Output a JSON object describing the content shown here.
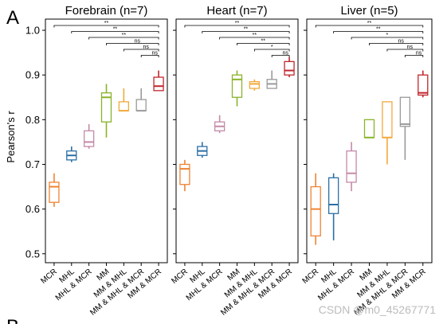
{
  "figure": {
    "panel_letter": "A",
    "next_panel_letter": "B",
    "ylabel": "Pearson's r",
    "watermark": "CSDN @m0_45267771"
  },
  "chart_data": {
    "type": "boxplot",
    "ylabel": "Pearson's r",
    "ylim": [
      0.48,
      1.025
    ],
    "yticks": [
      "0.5",
      "0.6",
      "0.7",
      "0.8",
      "0.9",
      "1.0"
    ],
    "categories": [
      "MCR",
      "MHL",
      "MHL & MCR",
      "MM",
      "MM & MHL",
      "MM & MHL & MCR",
      "MM & MCR"
    ],
    "colors": {
      "MCR": "#ee8434",
      "MHL": "#2b6fa6",
      "MHL & MCR": "#c48aa8",
      "MM": "#8ab32b",
      "MM & MHL": "#f2a93c",
      "MM & MHL & MCR": "#9a9a9a",
      "MM & MCR": "#c0272d"
    },
    "panels": [
      {
        "title": "Forebrain (n=7)",
        "boxes": [
          {
            "category": "MCR",
            "min": 0.605,
            "q1": 0.615,
            "median": 0.65,
            "q3": 0.66,
            "max": 0.68
          },
          {
            "category": "MHL",
            "min": 0.705,
            "q1": 0.71,
            "median": 0.72,
            "q3": 0.73,
            "max": 0.74
          },
          {
            "category": "MHL & MCR",
            "min": 0.735,
            "q1": 0.74,
            "median": 0.75,
            "q3": 0.775,
            "max": 0.79
          },
          {
            "category": "MM",
            "min": 0.76,
            "q1": 0.795,
            "median": 0.85,
            "q3": 0.86,
            "max": 0.88
          },
          {
            "category": "MM & MHL",
            "min": 0.82,
            "q1": 0.82,
            "median": 0.82,
            "q3": 0.84,
            "max": 0.87
          },
          {
            "category": "MM & MHL & MCR",
            "min": 0.82,
            "q1": 0.82,
            "median": 0.82,
            "q3": 0.845,
            "max": 0.87
          },
          {
            "category": "MM & MCR",
            "min": 0.865,
            "q1": 0.865,
            "median": 0.875,
            "q3": 0.895,
            "max": 0.91
          }
        ],
        "significance": [
          "**",
          "**",
          "**",
          "ns",
          "ns",
          "ns"
        ]
      },
      {
        "title": "Heart (n=7)",
        "boxes": [
          {
            "category": "MCR",
            "min": 0.64,
            "q1": 0.655,
            "median": 0.69,
            "q3": 0.7,
            "max": 0.71
          },
          {
            "category": "MHL",
            "min": 0.715,
            "q1": 0.72,
            "median": 0.73,
            "q3": 0.74,
            "max": 0.75
          },
          {
            "category": "MHL & MCR",
            "min": 0.77,
            "q1": 0.775,
            "median": 0.785,
            "q3": 0.795,
            "max": 0.81
          },
          {
            "category": "MM",
            "min": 0.83,
            "q1": 0.85,
            "median": 0.89,
            "q3": 0.9,
            "max": 0.91
          },
          {
            "category": "MM & MHL",
            "min": 0.865,
            "q1": 0.87,
            "median": 0.88,
            "q3": 0.885,
            "max": 0.89
          },
          {
            "category": "MM & MHL & MCR",
            "min": 0.87,
            "q1": 0.87,
            "median": 0.88,
            "q3": 0.89,
            "max": 0.91
          },
          {
            "category": "MM & MCR",
            "min": 0.895,
            "q1": 0.9,
            "median": 0.91,
            "q3": 0.93,
            "max": 0.94
          }
        ],
        "significance": [
          "**",
          "**",
          "**",
          "**",
          "*",
          "ns"
        ]
      },
      {
        "title": "Liver (n=5)",
        "boxes": [
          {
            "category": "MCR",
            "min": 0.52,
            "q1": 0.54,
            "median": 0.6,
            "q3": 0.65,
            "max": 0.68
          },
          {
            "category": "MHL",
            "min": 0.53,
            "q1": 0.59,
            "median": 0.61,
            "q3": 0.67,
            "max": 0.68
          },
          {
            "category": "MHL & MCR",
            "min": 0.64,
            "q1": 0.66,
            "median": 0.68,
            "q3": 0.73,
            "max": 0.75
          },
          {
            "category": "MM",
            "min": 0.76,
            "q1": 0.76,
            "median": 0.76,
            "q3": 0.8,
            "max": 0.8
          },
          {
            "category": "MM & MHL",
            "min": 0.7,
            "q1": 0.76,
            "median": 0.76,
            "q3": 0.84,
            "max": 0.84
          },
          {
            "category": "MM & MHL & MCR",
            "min": 0.71,
            "q1": 0.785,
            "median": 0.79,
            "q3": 0.85,
            "max": 0.85
          },
          {
            "category": "MM & MCR",
            "min": 0.85,
            "q1": 0.855,
            "median": 0.86,
            "q3": 0.9,
            "max": 0.91
          }
        ],
        "significance": [
          "**",
          "**",
          "*",
          "ns",
          "ns",
          "ns"
        ]
      }
    ]
  }
}
